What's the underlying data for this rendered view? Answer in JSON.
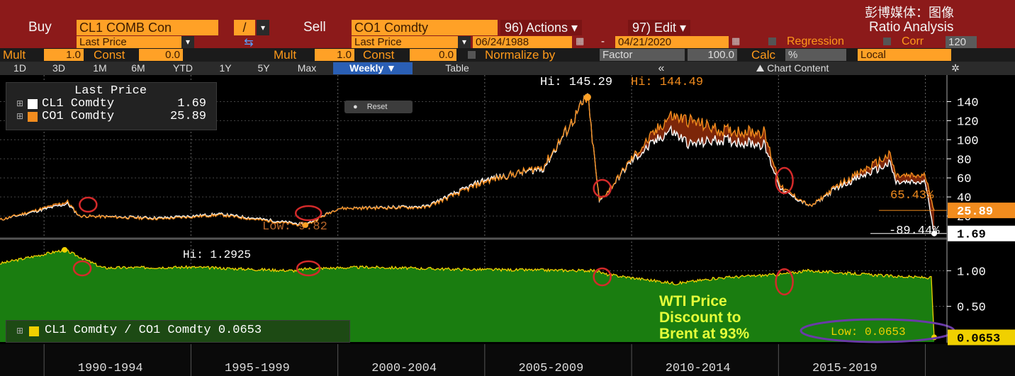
{
  "header": {
    "watermark": "彭博媒体：图像",
    "buy_label": "Buy",
    "buy_ticker": "CL1 COMB Con",
    "operator": "/",
    "sell_label": "Sell",
    "sell_ticker": "CO1 Comdty",
    "actions_label": "96) Actions ▾",
    "edit_label": "97) Edit ▾",
    "title": "Ratio Analysis",
    "buy_field": "Last Price",
    "sell_field": "Last Price",
    "date_start": "06/24/1988",
    "date_sep": "-",
    "date_end": "04/21/2020",
    "regression_label": "Regression",
    "corr_label": "Corr",
    "corr_value": "120",
    "mult_label": "Mult",
    "mult_value": "1.0",
    "const_label": "Const",
    "const_value": "0.0",
    "mult2_value": "1.0",
    "const2_value": "0.0",
    "normalize_label": "Normalize by",
    "normalize_select": "Factor",
    "normalize_value": "100.0",
    "calc_label": "Calc",
    "calc_value": "%",
    "local_value": "Local"
  },
  "tabs": [
    "1D",
    "3D",
    "1M",
    "6M",
    "YTD",
    "1Y",
    "5Y",
    "Max"
  ],
  "period_select": "Weekly ▼",
  "table_label": "Table",
  "collapse_label": "«",
  "chart_content_label": "Chart Content",
  "reset_label": "Reset",
  "legend_top": {
    "title": "Last Price",
    "items": [
      {
        "name": "CL1 Comdty",
        "value": "1.69",
        "color": "#ffffff"
      },
      {
        "name": "CO1 Comdty",
        "value": "25.89",
        "color": "#f28c1e"
      }
    ]
  },
  "legend_bottom": {
    "name": "CL1 Comdty / CO1 Comdty",
    "value": "0.0653",
    "color": "#f0d000"
  },
  "annotations": {
    "hi_wti": "Hi: 145.29",
    "hi_brent": "Hi: 144.49",
    "low_price": "Low: 9.82",
    "pct_brent": "65.43%",
    "pct_wti": "-89.44%",
    "hi_ratio": "Hi: 1.2925",
    "low_ratio": "Low: 0.0653",
    "discount_text": "WTI Price\nDiscount to\nBrent at 93%"
  },
  "last_tags": {
    "brent": "25.89",
    "wti": "1.69",
    "ratio": "0.0653"
  },
  "colors": {
    "header_red": "#8c1a1a",
    "orange": "#f28c1e",
    "green": "#1a7d10",
    "yellow": "#f0d000",
    "highlight_circle": "#d42a2a",
    "low_circle": "#6a3aa8"
  },
  "chart_data": [
    {
      "type": "line",
      "ylim": [
        0,
        150
      ],
      "yticks": [
        20,
        40,
        60,
        80,
        100,
        120,
        140
      ],
      "x_periods": [
        "1990-1994",
        "1995-1999",
        "2000-2004",
        "2005-2009",
        "2010-2014",
        "2015-2019"
      ],
      "series": [
        {
          "name": "CL1 Comdty",
          "x": [
            1988.5,
            1990.8,
            1991.2,
            1994,
            1996,
            1998.9,
            2000,
            2003,
            2005,
            2007,
            2008.5,
            2008.9,
            2009.3,
            2010,
            2011.3,
            2012,
            2013,
            2014.5,
            2015.1,
            2016.1,
            2017,
            2018.8,
            2019,
            2020,
            2020.3
          ],
          "values": [
            16,
            33,
            20,
            18,
            22,
            11,
            28,
            30,
            58,
            70,
            145.29,
            35,
            50,
            78,
            110,
            95,
            100,
            95,
            47,
            30,
            50,
            75,
            55,
            55,
            1.69
          ]
        },
        {
          "name": "CO1 Comdty",
          "x": [
            1988.5,
            1990.8,
            1991.2,
            1994,
            1996,
            1998.9,
            2000,
            2003,
            2005,
            2007,
            2008.5,
            2008.9,
            2009.3,
            2010,
            2011.3,
            2012,
            2013,
            2014.5,
            2015.1,
            2016.1,
            2017,
            2018.8,
            2019,
            2020,
            2020.3
          ],
          "values": [
            16,
            35,
            20,
            17,
            21,
            9.82,
            28,
            29,
            56,
            72,
            144.49,
            36,
            50,
            80,
            125,
            120,
            110,
            108,
            50,
            30,
            52,
            84,
            62,
            62,
            25.89
          ]
        }
      ]
    },
    {
      "type": "area",
      "ylim": [
        0,
        1.4
      ],
      "yticks": [
        0.5,
        1.0
      ],
      "series": [
        {
          "name": "CL1 Comdty / CO1 Comdty",
          "x": [
            1988.5,
            1990.7,
            1992,
            1995,
            1998.5,
            1999,
            2001,
            2004,
            2008.8,
            2009.1,
            2011.5,
            2013,
            2015.1,
            2016,
            2019,
            2020.2,
            2020.3
          ],
          "values": [
            1.1,
            1.2925,
            1.04,
            1.05,
            1.0,
            1.03,
            1.05,
            1.02,
            1.0,
            0.95,
            0.82,
            0.9,
            0.95,
            1.0,
            0.92,
            0.9,
            0.0653
          ]
        }
      ]
    }
  ]
}
